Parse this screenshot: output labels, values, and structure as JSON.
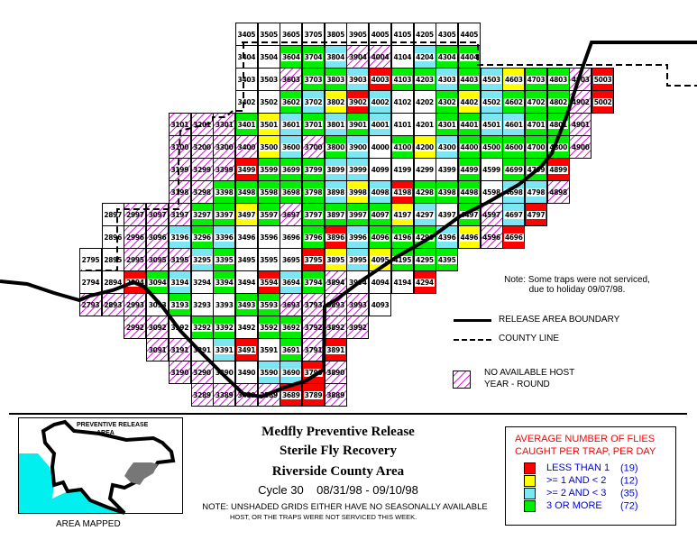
{
  "grid": {
    "status_legend": {
      "W": "unshaded",
      "G": "3 or more",
      "R": "less than 1",
      "Y": ">=1 and <2",
      "C": ">=2 and <3",
      "H": "no available host"
    },
    "rows": [
      {
        "code": "05",
        "start": 34,
        "status": "WWWWWWWWWWW"
      },
      {
        "code": "04",
        "start": 34,
        "status": "WWGGCHHWCGG"
      },
      {
        "code": "03",
        "start": 34,
        "status": "WWHGGCRGGCGCYGGHR"
      },
      {
        "code": "02",
        "start": 34,
        "status": "WWGCYRCWWGYCGGGHR"
      },
      {
        "code": "01",
        "start": 31,
        "status": "HHHGYCGCGCWWGGCCGGH"
      },
      {
        "code": "00",
        "start": 31,
        "status": "HHHHYCHGCWGYCGGGGGH"
      },
      {
        "code": "99",
        "start": 31,
        "status": "HHHRGGGCCWWWWGWGGR"
      },
      {
        "code": "98",
        "start": 31,
        "status": "HHGGGGGCYCRGGGWCCH"
      },
      {
        "code": "97",
        "start": 28,
        "status": "WHHHGGYGHGGGGYCWGHCR"
      },
      {
        "code": "96",
        "start": 28,
        "status": "WHHCGCWWWGRCGGGCYHR"
      },
      {
        "code": "95",
        "start": 27,
        "status": "WWHHHCGWWWRYCYGGG"
      },
      {
        "code": "94",
        "start": 27,
        "status": "WWRGCWGWRCGHWWWR"
      },
      {
        "code": "93",
        "start": 27,
        "status": "HHHWGWWGGHHHHW"
      },
      {
        "code": "92",
        "start": 29,
        "status": "HHWGGWGGHHH"
      },
      {
        "code": "91",
        "start": 30,
        "status": "HHWCRWGHR"
      },
      {
        "code": "90",
        "start": 31,
        "status": "HHWWCCRH"
      },
      {
        "code": "89",
        "start": 32,
        "status": "HHHHRRH"
      }
    ]
  },
  "map_note": {
    "line1": "Note: Some traps were not serviced,",
    "line2": "due to holiday 09/07/98."
  },
  "map_legend": {
    "boundary": "RELEASE AREA BOUNDARY",
    "county": "COUNTY LINE",
    "no_host_1": "NO AVAILABLE HOST",
    "no_host_2": "YEAR - ROUND"
  },
  "inset": {
    "label": "PREVENTIVE RELEASE",
    "label2": "AREA",
    "caption": "AREA MAPPED"
  },
  "title": {
    "line1": "Medfly Preventive Release",
    "line2": "Sterile Fly Recovery",
    "line3": "Riverside County Area",
    "cycle": "Cycle 30    08/31/98 - 09/10/98",
    "note1": "NOTE: UNSHADED GRIDS EITHER HAVE NO SEASONALLY AVAILABLE",
    "note2": "HOST, OR THE TRAPS WERE NOT SERVICED THIS WEEK."
  },
  "legend": {
    "title1": "AVERAGE NUMBER OF FLIES",
    "title2": "CAUGHT PER TRAP, PER DAY",
    "title_color": "#ff0000",
    "items": [
      {
        "label": "LESS THAN 1",
        "count": "(19)",
        "color": "#ff0000"
      },
      {
        "label": ">= 1 AND < 2",
        "count": "(12)",
        "color": "#ffff00"
      },
      {
        "label": ">= 2 AND < 3",
        "count": "(35)",
        "color": "#44ddee"
      },
      {
        "label": "3 OR MORE",
        "count": "(72)",
        "color": "#00ee00"
      }
    ]
  }
}
